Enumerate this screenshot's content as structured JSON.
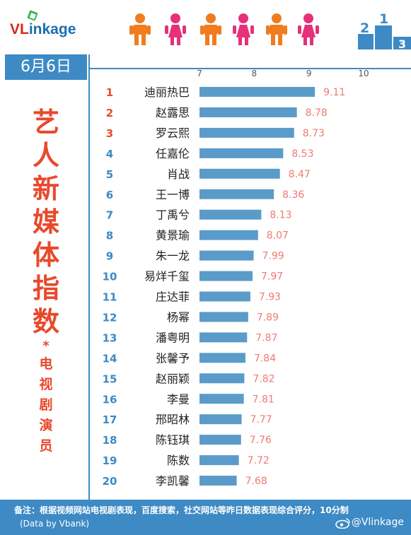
{
  "brand": {
    "logo_prefix": "VL",
    "logo_rest": "inkage"
  },
  "date_label": "6月6日",
  "title_main": [
    "艺",
    "人",
    "新",
    "媒",
    "体",
    "指",
    "数"
  ],
  "title_star": "*",
  "title_sub": [
    "电",
    "视",
    "剧",
    "演",
    "员"
  ],
  "podium_digits": [
    "2",
    "1",
    "3"
  ],
  "footer": {
    "note": "备注：根据视频网站电视剧表现，百度搜索，社交网站等昨日数据表现综合评分，10分制",
    "source": "(Data by Vbank)",
    "handle": "@Vlinkage"
  },
  "colors": {
    "bar": "#5b9bc9",
    "rank": "#e8492c",
    "value": "#f07a74",
    "accent": "#3d8ac4"
  },
  "chart_data": {
    "type": "bar",
    "orientation": "horizontal",
    "title": "",
    "xlabel": "",
    "ylabel": "",
    "xlim": [
      7,
      10
    ],
    "x_ticks": [
      "7",
      "8",
      "9",
      "10"
    ],
    "grid": false,
    "ranks": [
      "1",
      "2",
      "3",
      "4",
      "5",
      "6",
      "7",
      "8",
      "9",
      "10",
      "11",
      "12",
      "13",
      "14",
      "15",
      "16",
      "17",
      "18",
      "19",
      "20"
    ],
    "categories": [
      "迪丽热巴",
      "赵露思",
      "罗云熙",
      "任嘉伦",
      "肖战",
      "王一博",
      "丁禹兮",
      "黄景瑜",
      "朱一龙",
      "易烊千玺",
      "庄达菲",
      "杨幂",
      "潘粤明",
      "张馨予",
      "赵丽颖",
      "李曼",
      "邢昭林",
      "陈钰琪",
      "陈数",
      "李凯馨"
    ],
    "values": [
      9.11,
      8.78,
      8.73,
      8.53,
      8.47,
      8.36,
      8.13,
      8.07,
      7.99,
      7.97,
      7.93,
      7.89,
      7.87,
      7.84,
      7.82,
      7.81,
      7.77,
      7.76,
      7.72,
      7.68
    ],
    "value_labels": [
      "9.11",
      "8.78",
      "8.73",
      "8.53",
      "8.47",
      "8.36",
      "8.13",
      "8.07",
      "7.99",
      "7.97",
      "7.93",
      "7.89",
      "7.87",
      "7.84",
      "7.82",
      "7.81",
      "7.77",
      "7.76",
      "7.72",
      "7.68"
    ]
  }
}
